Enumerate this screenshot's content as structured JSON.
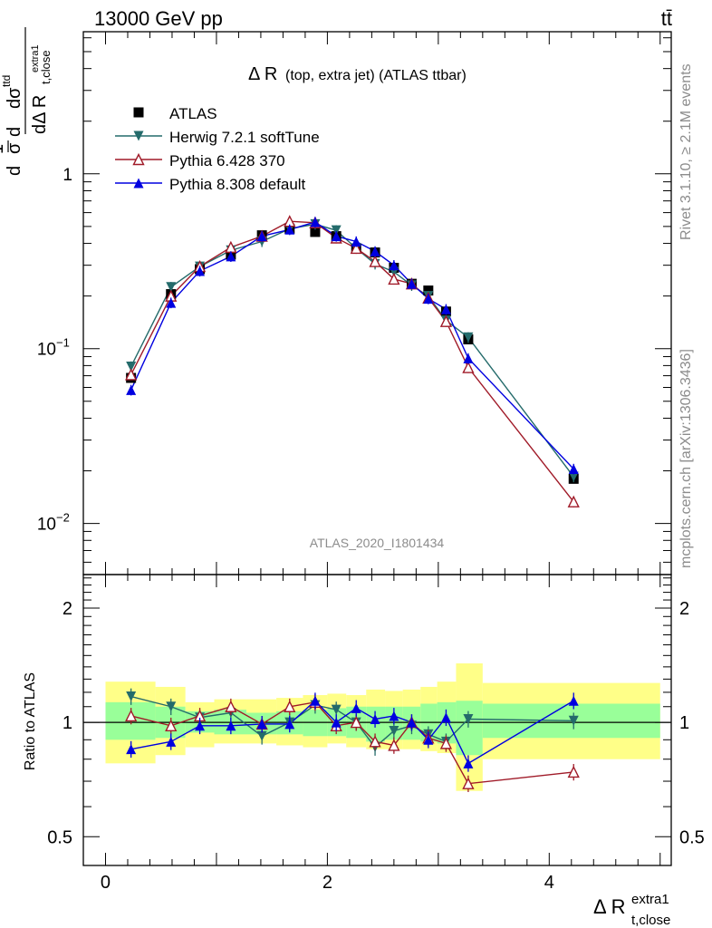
{
  "header": {
    "left": "13000 GeV pp",
    "right": "tt̄"
  },
  "side_labels": {
    "rivet": "Rivet 3.1.10, ≥ 2.1M events",
    "mcplots": "mcplots.cern.ch [arXiv:1306.3436]"
  },
  "chart_data": [
    {
      "type": "scatter",
      "panel": "main",
      "title": "Δ R (top, extra jet) (ATLAS ttbar)",
      "title_main": "Δ R",
      "title_sub": "(top, extra jet) (ATLAS ttbar)",
      "ylabel": "d(1/σ)dσ^{ttd} / dΔ R_{t,close}^{extra1}",
      "ylabel_parts": {
        "frac": "1",
        "sigma": "σ",
        "d": "d",
        "sigtd": "dσ",
        "ttd": "ttd",
        "den": "dΔ R",
        "sub": "t,close",
        "sup": "extra1"
      },
      "xlim": [
        -0.2,
        5.1
      ],
      "ylim": [
        0.0051,
        6.5
      ],
      "log_y": true,
      "yticks": [
        {
          "value": 0.01,
          "label": "10",
          "exp": "−2"
        },
        {
          "value": 0.1,
          "label": "10",
          "exp": "−1"
        },
        {
          "value": 1,
          "label": "1",
          "exp": ""
        }
      ],
      "watermark": "ATLAS_2020_I1801434",
      "legend_position": "top-left",
      "series": [
        {
          "name": "ATLAS",
          "color": "#000000",
          "marker": "square",
          "x": [
            0.23,
            0.59,
            0.85,
            1.13,
            1.41,
            1.66,
            1.89,
            2.08,
            2.26,
            2.43,
            2.6,
            2.76,
            2.91,
            3.07,
            3.27,
            4.22
          ],
          "y": [
            0.068,
            0.205,
            0.285,
            0.345,
            0.445,
            0.485,
            0.465,
            0.44,
            0.375,
            0.355,
            0.29,
            0.235,
            0.215,
            0.163,
            0.113,
            0.018
          ]
        },
        {
          "name": "Herwig 7.2.1 softTune",
          "color": "#246b6b",
          "marker": "triangle-down",
          "x": [
            0.23,
            0.59,
            0.85,
            1.13,
            1.41,
            1.66,
            1.89,
            2.08,
            2.26,
            2.43,
            2.6,
            2.76,
            2.91,
            3.07,
            3.27,
            4.22
          ],
          "y": [
            0.079,
            0.225,
            0.295,
            0.365,
            0.41,
            0.485,
            0.515,
            0.475,
            0.375,
            0.305,
            0.275,
            0.23,
            0.2,
            0.145,
            0.116,
            0.0185
          ]
        },
        {
          "name": "Pythia 6.428 370",
          "color": "#a01a28",
          "marker": "triangle-up-open",
          "x": [
            0.23,
            0.59,
            0.85,
            1.13,
            1.41,
            1.66,
            1.89,
            2.08,
            2.26,
            2.43,
            2.6,
            2.76,
            2.91,
            3.07,
            3.27,
            4.22
          ],
          "y": [
            0.071,
            0.2,
            0.295,
            0.38,
            0.44,
            0.535,
            0.525,
            0.43,
            0.375,
            0.315,
            0.25,
            0.235,
            0.195,
            0.143,
            0.078,
            0.0133
          ]
        },
        {
          "name": "Pythia 8.308 default",
          "color": "#0000e0",
          "marker": "triangle-up",
          "x": [
            0.23,
            0.59,
            0.85,
            1.13,
            1.41,
            1.66,
            1.89,
            2.08,
            2.26,
            2.43,
            2.6,
            2.76,
            2.91,
            3.07,
            3.27,
            4.22
          ],
          "y": [
            0.058,
            0.183,
            0.278,
            0.337,
            0.44,
            0.48,
            0.53,
            0.44,
            0.41,
            0.36,
            0.3,
            0.235,
            0.193,
            0.168,
            0.088,
            0.0205
          ]
        }
      ]
    },
    {
      "type": "scatter",
      "panel": "ratio",
      "ylabel": "Ratio to ATLAS",
      "xlabel": "Δ R_{t,close}^{extra1}",
      "xlabel_parts": {
        "main": "Δ R",
        "sub": "t,close",
        "sup": "extra1"
      },
      "xlim": [
        -0.2,
        5.1
      ],
      "ylim": [
        0.42,
        2.45
      ],
      "log_y": true,
      "xticks": [
        0,
        2,
        4
      ],
      "yticks": [
        0.5,
        1,
        2
      ],
      "reference_line": 1,
      "bins": [
        0,
        0.45,
        0.72,
        0.98,
        1.27,
        1.54,
        1.78,
        2.0,
        2.17,
        2.35,
        2.52,
        2.68,
        2.84,
        2.99,
        3.16,
        3.4,
        5.0
      ],
      "band_inner": [
        [
          0.9,
          1.13
        ],
        [
          0.91,
          1.1
        ],
        [
          0.94,
          1.07
        ],
        [
          0.93,
          1.08
        ],
        [
          0.93,
          1.06
        ],
        [
          0.93,
          1.07
        ],
        [
          0.92,
          1.08
        ],
        [
          0.92,
          1.09
        ],
        [
          0.91,
          1.1
        ],
        [
          0.89,
          1.1
        ],
        [
          0.9,
          1.1
        ],
        [
          0.9,
          1.1
        ],
        [
          0.89,
          1.12
        ],
        [
          0.88,
          1.13
        ],
        [
          0.82,
          1.14
        ],
        [
          0.91,
          1.12
        ]
      ],
      "band_outer": [
        [
          0.78,
          1.28
        ],
        [
          0.82,
          1.24
        ],
        [
          0.86,
          1.13
        ],
        [
          0.88,
          1.15
        ],
        [
          0.88,
          1.15
        ],
        [
          0.87,
          1.16
        ],
        [
          0.86,
          1.18
        ],
        [
          0.88,
          1.19
        ],
        [
          0.86,
          1.18
        ],
        [
          0.85,
          1.22
        ],
        [
          0.85,
          1.21
        ],
        [
          0.85,
          1.22
        ],
        [
          0.84,
          1.24
        ],
        [
          0.83,
          1.28
        ],
        [
          0.66,
          1.43
        ],
        [
          0.8,
          1.27
        ]
      ],
      "series": [
        {
          "name": "Herwig 7.2.1 softTune",
          "color": "#246b6b",
          "marker": "triangle-down",
          "x": [
            0.23,
            0.59,
            0.85,
            1.13,
            1.41,
            1.66,
            1.89,
            2.08,
            2.26,
            2.43,
            2.6,
            2.76,
            2.91,
            3.07,
            3.27,
            4.22
          ],
          "y": [
            1.17,
            1.1,
            1.03,
            1.06,
            0.92,
            1.0,
            1.11,
            1.08,
            1.0,
            0.86,
            0.95,
            0.98,
            0.93,
            0.89,
            1.02,
            1.01
          ]
        },
        {
          "name": "Pythia 6.428 370",
          "color": "#a01a28",
          "marker": "triangle-up-open",
          "x": [
            0.23,
            0.59,
            0.85,
            1.13,
            1.41,
            1.66,
            1.89,
            2.08,
            2.26,
            2.43,
            2.6,
            2.76,
            2.91,
            3.07,
            3.27,
            4.22
          ],
          "y": [
            1.04,
            0.98,
            1.04,
            1.1,
            0.99,
            1.1,
            1.13,
            0.98,
            1.0,
            0.89,
            0.87,
            1.0,
            0.91,
            0.88,
            0.69,
            0.74
          ]
        },
        {
          "name": "Pythia 8.308 default",
          "color": "#0000e0",
          "marker": "triangle-up",
          "x": [
            0.23,
            0.59,
            0.85,
            1.13,
            1.41,
            1.66,
            1.89,
            2.08,
            2.26,
            2.43,
            2.6,
            2.76,
            2.91,
            3.07,
            3.27,
            4.22
          ],
          "y": [
            0.85,
            0.89,
            0.98,
            0.98,
            0.99,
            0.99,
            1.14,
            1.0,
            1.09,
            1.02,
            1.04,
            1.0,
            0.9,
            1.03,
            0.78,
            1.14
          ]
        }
      ]
    }
  ]
}
